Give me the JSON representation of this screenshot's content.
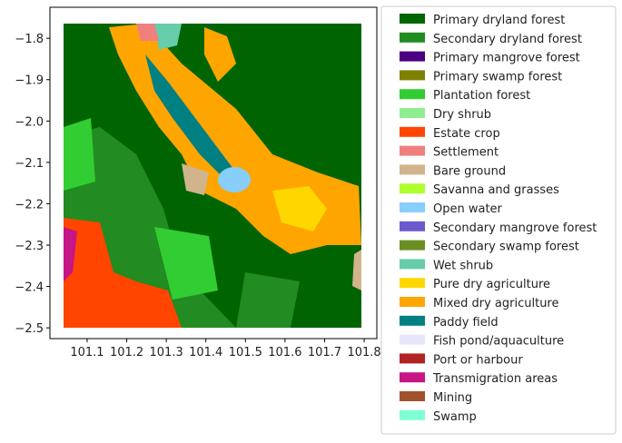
{
  "chart_data": {
    "type": "map",
    "xlim": [
      101.006,
      101.832
    ],
    "ylim": [
      -2.526,
      -1.725
    ],
    "xticks": [
      101.1,
      101.2,
      101.3,
      101.4,
      101.5,
      101.6,
      101.7,
      101.8
    ],
    "yticks": [
      {
        "value": -1.8,
        "label": "−1.8"
      },
      {
        "value": -1.9,
        "label": "−1.9"
      },
      {
        "value": -2.0,
        "label": "−2.0"
      },
      {
        "value": -2.1,
        "label": "−2.1"
      },
      {
        "value": -2.2,
        "label": "−2.2"
      },
      {
        "value": -2.3,
        "label": "−2.3"
      },
      {
        "value": -2.4,
        "label": "−2.4"
      },
      {
        "value": -2.5,
        "label": "−2.5"
      }
    ],
    "legend": [
      {
        "name": "Primary dryland forest",
        "color": "#006400"
      },
      {
        "name": "Secondary dryland forest",
        "color": "#228b22"
      },
      {
        "name": "Primary mangrove forest",
        "color": "#4b0082"
      },
      {
        "name": "Primary swamp forest",
        "color": "#808000"
      },
      {
        "name": "Plantation forest",
        "color": "#32cd32"
      },
      {
        "name": "Dry shrub",
        "color": "#90ee90"
      },
      {
        "name": "Estate crop",
        "color": "#ff4500"
      },
      {
        "name": "Settlement",
        "color": "#f08080"
      },
      {
        "name": "Bare ground",
        "color": "#d2b48c"
      },
      {
        "name": "Savanna and grasses",
        "color": "#adff2f"
      },
      {
        "name": "Open water",
        "color": "#87cefa"
      },
      {
        "name": "Secondary mangrove forest",
        "color": "#6a5acd"
      },
      {
        "name": "Secondary swamp forest",
        "color": "#6b8e23"
      },
      {
        "name": "Wet shrub",
        "color": "#66cdaa"
      },
      {
        "name": "Pure dry agriculture",
        "color": "#ffd700"
      },
      {
        "name": "Mixed dry agriculture",
        "color": "#ffa500"
      },
      {
        "name": "Paddy field",
        "color": "#008080"
      },
      {
        "name": "Fish pond/aquaculture",
        "color": "#e6e6fa"
      },
      {
        "name": "Port or harbour",
        "color": "#b22222"
      },
      {
        "name": "Transmigration areas",
        "color": "#c71585"
      },
      {
        "name": "Mining",
        "color": "#a0522d"
      },
      {
        "name": "Swamp",
        "color": "#7fffd4"
      }
    ]
  }
}
